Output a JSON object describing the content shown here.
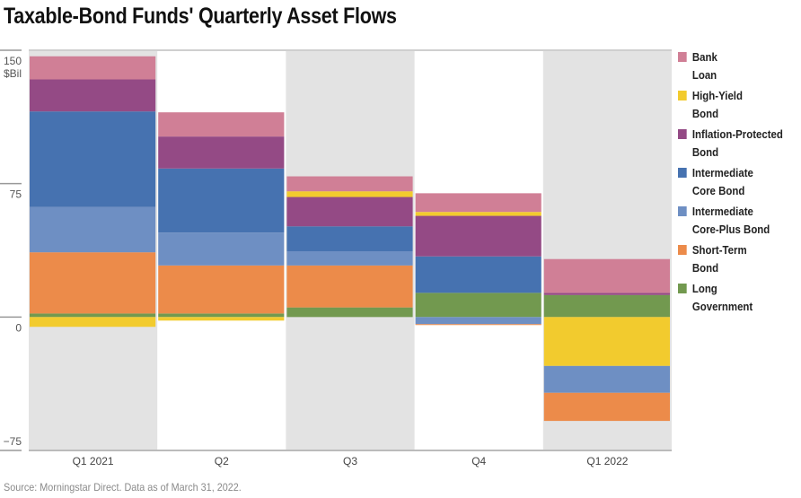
{
  "chart_data": {
    "type": "bar",
    "stacked": true,
    "title": "Taxable-Bond Funds' Quarterly Asset Flows",
    "ylabel": "$Bil",
    "ylim": [
      -75,
      150
    ],
    "yticks": [
      150,
      75,
      0,
      -75
    ],
    "ytick_labels": [
      "150",
      "75",
      "0",
      "−75"
    ],
    "categories": [
      "Q1 2021",
      "Q2",
      "Q3",
      "Q4",
      "Q1 2022"
    ],
    "legend_position": "right",
    "series": [
      {
        "name": "Bank Loan",
        "color": "#d07f96",
        "values": [
          13,
          13.6,
          8.4,
          10.5,
          19
        ]
      },
      {
        "name": "High-Yield Bond",
        "color": "#f2cb2e",
        "values": [
          -5.5,
          -2,
          3.2,
          2.2,
          -27.5
        ]
      },
      {
        "name": "Inflation-Protected Bond",
        "color": "#944a85",
        "values": [
          18,
          18,
          16.5,
          22.8,
          1.2
        ]
      },
      {
        "name": "Intermediate Core Bond",
        "color": "#4672b0",
        "values": [
          53.7,
          36,
          14,
          20.5,
          0
        ]
      },
      {
        "name": "Intermediate Core-Plus Bond",
        "color": "#6e8fc3",
        "values": [
          25.5,
          18.5,
          8,
          -4,
          -15.1
        ]
      },
      {
        "name": "Short-Term Bond",
        "color": "#ec8b4a",
        "values": [
          34.4,
          27,
          23.6,
          -0.5,
          -15.8
        ]
      },
      {
        "name": "Long Government",
        "color": "#72994f",
        "values": [
          2,
          2,
          5.4,
          13.6,
          12.4
        ]
      }
    ]
  },
  "source": "Source: Morningstar Direct. Data as of March 31, 2022."
}
